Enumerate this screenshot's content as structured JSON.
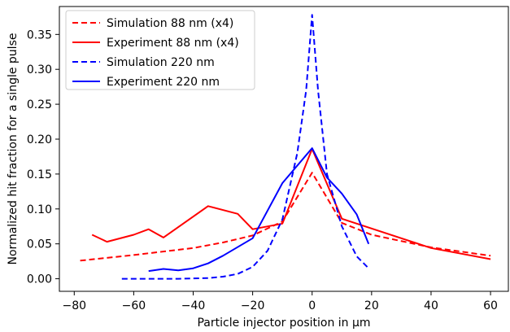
{
  "chart_data": {
    "type": "line",
    "title": "",
    "xlabel": "Particle injector position in μm",
    "ylabel": "Normalized hit fraction for a single pulse",
    "xlim": [
      -85,
      66
    ],
    "ylim": [
      -0.018,
      0.39
    ],
    "xticks": [
      -80,
      -60,
      -40,
      -20,
      0,
      20,
      40,
      60
    ],
    "yticks": [
      0.0,
      0.05,
      0.1,
      0.15,
      0.2,
      0.25,
      0.3,
      0.35
    ],
    "xtick_labels": [
      "−80",
      "−60",
      "−40",
      "−20",
      "0",
      "20",
      "40",
      "60"
    ],
    "ytick_labels": [
      "0.00",
      "0.05",
      "0.10",
      "0.15",
      "0.20",
      "0.25",
      "0.30",
      "0.35"
    ],
    "grid": false,
    "legend_position": "top-left",
    "series": [
      {
        "name": "Simulation 88 nm (x4)",
        "color": "#ff0000",
        "dashed": true,
        "x": [
          -78,
          -60,
          -40,
          -30,
          -20,
          -10,
          0,
          10,
          20,
          40,
          60
        ],
        "y": [
          0.026,
          0.034,
          0.044,
          0.052,
          0.062,
          0.082,
          0.152,
          0.08,
          0.063,
          0.045,
          0.033
        ]
      },
      {
        "name": "Experiment 88 nm (x4)",
        "color": "#ff0000",
        "dashed": false,
        "x": [
          -74,
          -69,
          -60,
          -55,
          -50,
          -35,
          -25,
          -20,
          -10,
          0,
          10,
          40,
          60
        ],
        "y": [
          0.063,
          0.053,
          0.063,
          0.071,
          0.059,
          0.104,
          0.093,
          0.071,
          0.079,
          0.186,
          0.086,
          0.044,
          0.028
        ]
      },
      {
        "name": "Simulation 220 nm",
        "color": "#0000ff",
        "dashed": true,
        "x": [
          -64,
          -55,
          -45,
          -40,
          -35,
          -30,
          -25,
          -20,
          -15,
          -10,
          -5,
          -2,
          0,
          2,
          5,
          10,
          15,
          19
        ],
        "y": [
          0.0,
          0.0,
          0.0,
          0.0005,
          0.001,
          0.003,
          0.007,
          0.017,
          0.04,
          0.085,
          0.18,
          0.27,
          0.378,
          0.27,
          0.15,
          0.075,
          0.032,
          0.015
        ]
      },
      {
        "name": "Experiment 220 nm",
        "color": "#0000ff",
        "dashed": false,
        "x": [
          -55,
          -50,
          -45,
          -40,
          -35,
          -30,
          -20,
          -10,
          0,
          5,
          10,
          15,
          19
        ],
        "y": [
          0.011,
          0.014,
          0.012,
          0.015,
          0.022,
          0.033,
          0.058,
          0.137,
          0.187,
          0.145,
          0.122,
          0.092,
          0.05
        ]
      }
    ]
  }
}
